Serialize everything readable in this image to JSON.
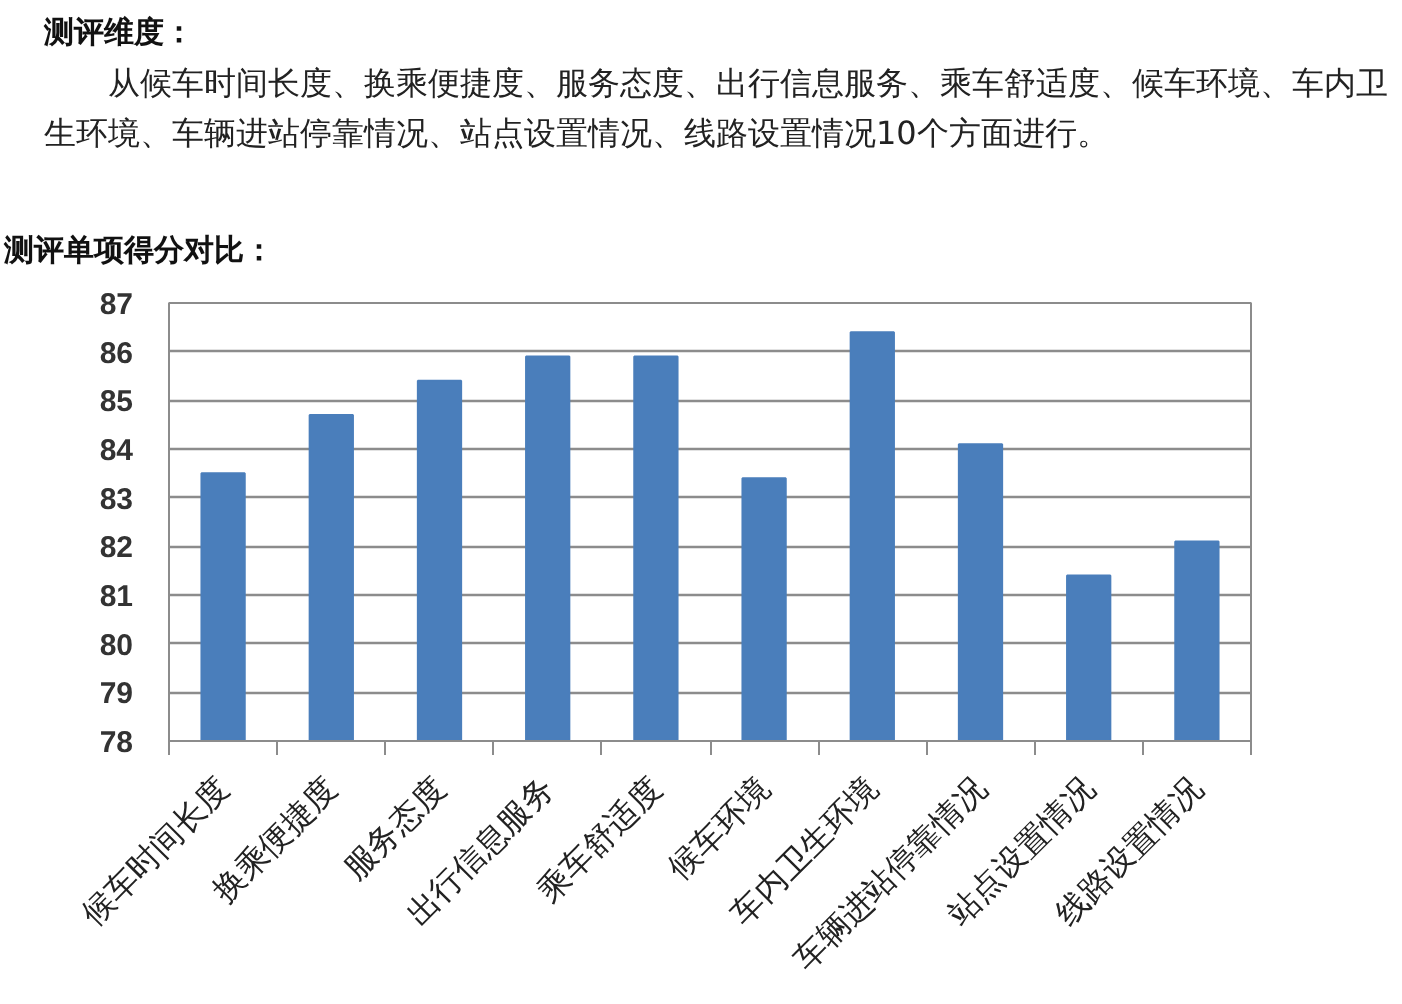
{
  "chart_data": {
    "type": "bar",
    "title": "测评单项得分对比：",
    "annotations": [
      "测评维度：",
      "从候车时间长度、换乘便捷度、服务态度、出行信息服务、乘车舒适度、候车环境、车内卫生环境、车辆进站停靠情况、站点设置情况、线路设置情况10个方面进行。"
    ],
    "categories": [
      "候车时间长度",
      "换乘便捷度",
      "服务态度",
      "出行信息服务",
      "乘车舒适度",
      "候车环境",
      "车内卫生环境",
      "车辆进站停靠情况",
      "站点设置情况",
      "线路设置情况"
    ],
    "values": [
      83.5,
      84.7,
      85.4,
      85.9,
      85.9,
      83.4,
      86.4,
      84.1,
      81.4,
      82.1
    ],
    "color": "#4a7ebb",
    "ylim": [
      78,
      87
    ],
    "yticks": [
      78,
      79,
      80,
      81,
      82,
      83,
      84,
      85,
      86,
      87
    ],
    "grid": "y"
  }
}
